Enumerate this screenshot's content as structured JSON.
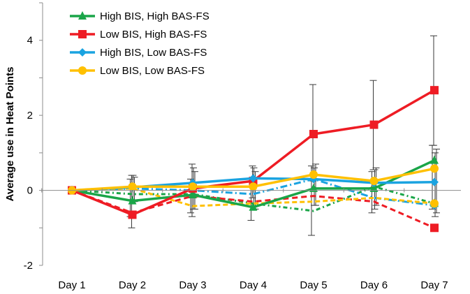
{
  "chart_data": {
    "type": "line",
    "title": "",
    "xlabel": "",
    "ylabel": "Average use in Heat Points",
    "categories": [
      "Day 1",
      "Day 2",
      "Day 3",
      "Day 4",
      "Day 5",
      "Day 6",
      "Day 7"
    ],
    "ylim": [
      -2,
      5
    ],
    "yticks": [
      -2,
      0,
      2,
      4
    ],
    "legend_position": "top-left",
    "series": [
      {
        "name": "High BIS, High BAS-FS",
        "color": "#1aa548",
        "marker": "triangle",
        "values": [
          0,
          -0.28,
          -0.12,
          -0.45,
          0.05,
          0.05,
          0.8
        ],
        "secondary_values": [
          0,
          -0.1,
          -0.1,
          -0.35,
          -0.55,
          0.1,
          -0.35
        ],
        "error_low": [
          0,
          -0.7,
          -0.6,
          -0.8,
          -1.2,
          -0.6,
          -0.5
        ],
        "error_high": [
          0,
          0.3,
          0.3,
          0.3,
          0.65,
          0.5,
          1.2
        ]
      },
      {
        "name": "Low BIS, High BAS-FS",
        "color": "#ee1c24",
        "marker": "square",
        "values": [
          0,
          -0.65,
          0.05,
          0.25,
          1.5,
          1.75,
          2.67
        ],
        "secondary_values": [
          0,
          -0.6,
          -0.15,
          -0.3,
          -0.15,
          -0.3,
          -1.0
        ],
        "error_low": [
          0,
          -1.0,
          -0.7,
          -0.2,
          0.25,
          0.55,
          1.2
        ],
        "error_high": [
          0,
          0.4,
          0.7,
          0.65,
          2.82,
          2.93,
          4.12
        ]
      },
      {
        "name": "High BIS, Low BAS-FS",
        "color": "#1aa3e0",
        "marker": "diamond",
        "values": [
          0,
          0.08,
          0.2,
          0.32,
          0.3,
          0.2,
          0.22
        ],
        "secondary_values": [
          0,
          0.05,
          0.0,
          -0.1,
          0.3,
          -0.2,
          -0.4
        ],
        "error_low": [
          0,
          -0.3,
          -0.5,
          -0.5,
          -0.4,
          -0.5,
          -0.7
        ],
        "error_high": [
          0,
          0.4,
          0.6,
          0.6,
          0.6,
          0.55,
          1.0
        ]
      },
      {
        "name": "Low BIS, Low BAS-FS",
        "color": "#ffc000",
        "marker": "circle",
        "values": [
          0,
          0.1,
          0.1,
          0.1,
          0.42,
          0.25,
          0.58
        ],
        "secondary_values": [
          0,
          0.05,
          -0.42,
          -0.35,
          -0.3,
          -0.2,
          -0.35
        ],
        "error_low": [
          0,
          -0.3,
          -0.5,
          -0.5,
          -0.4,
          -0.4,
          -0.6
        ],
        "error_high": [
          0,
          0.35,
          0.5,
          0.5,
          0.7,
          0.6,
          1.1
        ]
      }
    ]
  }
}
